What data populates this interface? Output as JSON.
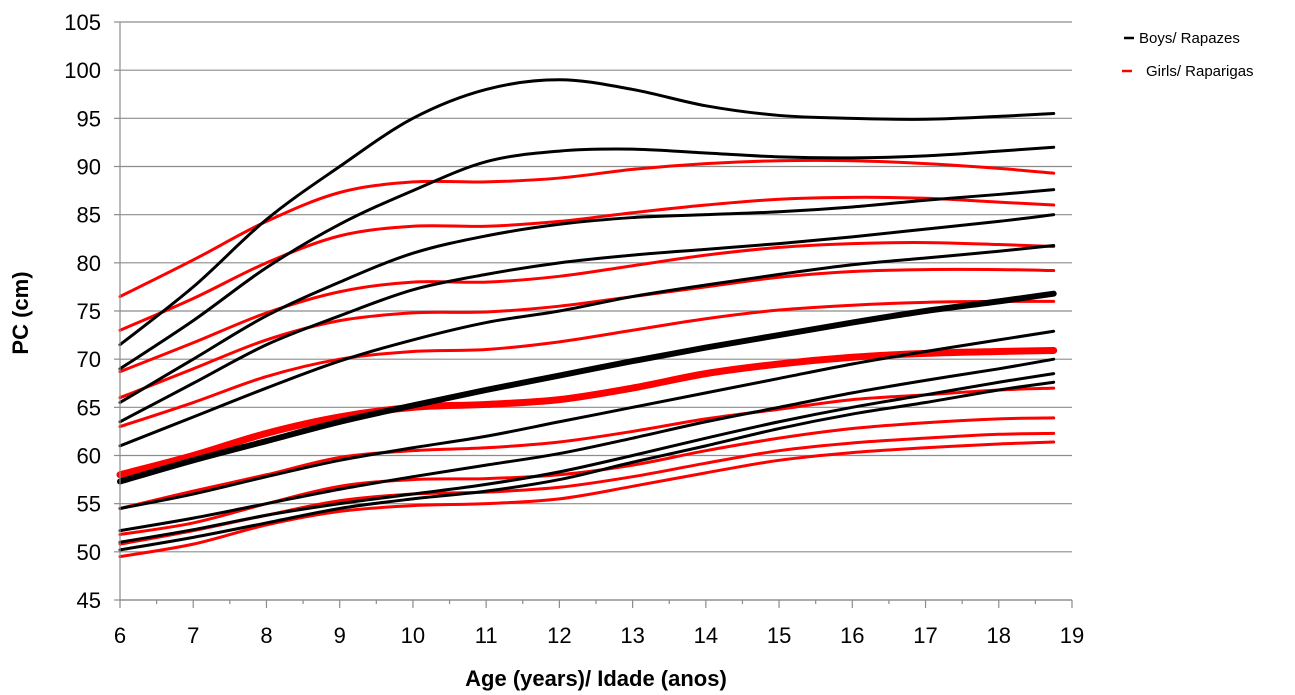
{
  "chart_data": {
    "type": "line",
    "xlabel": "Age (years)/ Idade (anos)",
    "ylabel": "PC (cm)",
    "xlim": [
      6,
      19
    ],
    "ylim": [
      45,
      105
    ],
    "x_ticks": [
      "6",
      "7",
      "8",
      "9",
      "10",
      "11",
      "12",
      "13",
      "14",
      "15",
      "16",
      "17",
      "18",
      "19"
    ],
    "y_ticks": [
      "45",
      "50",
      "55",
      "60",
      "65",
      "70",
      "75",
      "80",
      "85",
      "90",
      "95",
      "100",
      "105"
    ],
    "grid": "horizontal",
    "legend_position": "top-right",
    "legend": [
      {
        "label": "Boys/ Rapazes",
        "color": "#000000"
      },
      {
        "label": "Girls/ Raparigas",
        "color": "#ff0000"
      }
    ],
    "x": [
      6,
      7,
      8,
      9,
      10,
      11,
      12,
      13,
      14,
      15,
      16,
      17,
      18,
      18.75
    ],
    "series": [
      {
        "group": "boys",
        "color": "#000000",
        "width": 3,
        "values": [
          71.5,
          77.5,
          84.5,
          90.0,
          95.0,
          98.0,
          99.0,
          98.0,
          96.3,
          95.3,
          95.0,
          94.9,
          95.2,
          95.5
        ]
      },
      {
        "group": "boys",
        "color": "#000000",
        "width": 3,
        "values": [
          69.0,
          74.0,
          79.5,
          84.0,
          87.5,
          90.5,
          91.6,
          91.8,
          91.4,
          91.0,
          90.9,
          91.1,
          91.6,
          92.0
        ]
      },
      {
        "group": "boys",
        "color": "#000000",
        "width": 3,
        "values": [
          65.5,
          70.0,
          74.5,
          78.0,
          81.0,
          82.8,
          84.0,
          84.7,
          85.0,
          85.3,
          85.8,
          86.5,
          87.1,
          87.6
        ]
      },
      {
        "group": "boys",
        "color": "#000000",
        "width": 3,
        "values": [
          63.5,
          67.5,
          71.5,
          74.5,
          77.2,
          78.8,
          80.0,
          80.8,
          81.4,
          82.0,
          82.7,
          83.5,
          84.3,
          85.0
        ]
      },
      {
        "group": "boys",
        "color": "#000000",
        "width": 3,
        "values": [
          61.0,
          64.0,
          67.0,
          69.8,
          72.0,
          73.8,
          75.0,
          76.5,
          77.7,
          78.8,
          79.8,
          80.5,
          81.2,
          81.8
        ]
      },
      {
        "group": "boys",
        "color": "#000000",
        "width": 6,
        "values": [
          57.3,
          59.5,
          61.5,
          63.5,
          65.2,
          66.8,
          68.3,
          69.8,
          71.2,
          72.5,
          73.8,
          75.0,
          76.0,
          76.8
        ]
      },
      {
        "group": "boys",
        "color": "#000000",
        "width": 3,
        "values": [
          54.5,
          56.0,
          57.8,
          59.5,
          60.8,
          62.0,
          63.5,
          65.0,
          66.5,
          68.0,
          69.5,
          70.8,
          72.0,
          72.9
        ]
      },
      {
        "group": "boys",
        "color": "#000000",
        "width": 3,
        "values": [
          52.2,
          53.5,
          55.0,
          56.5,
          57.8,
          59.0,
          60.2,
          61.8,
          63.5,
          65.0,
          66.5,
          67.8,
          69.0,
          70.0
        ]
      },
      {
        "group": "boys",
        "color": "#000000",
        "width": 3,
        "values": [
          51.0,
          52.3,
          53.8,
          55.0,
          56.0,
          57.0,
          58.3,
          60.0,
          61.8,
          63.5,
          65.0,
          66.3,
          67.6,
          68.5
        ]
      },
      {
        "group": "boys",
        "color": "#000000",
        "width": 3,
        "values": [
          50.2,
          51.5,
          53.0,
          54.5,
          55.5,
          56.3,
          57.5,
          59.3,
          61.0,
          62.8,
          64.3,
          65.5,
          66.8,
          67.6
        ]
      },
      {
        "group": "girls",
        "color": "#ff0000",
        "width": 3,
        "values": [
          76.5,
          80.3,
          84.3,
          87.3,
          88.4,
          88.4,
          88.8,
          89.7,
          90.3,
          90.6,
          90.6,
          90.3,
          89.8,
          89.3
        ]
      },
      {
        "group": "girls",
        "color": "#ff0000",
        "width": 3,
        "values": [
          73.0,
          76.3,
          80.0,
          82.8,
          83.8,
          83.8,
          84.3,
          85.2,
          86.0,
          86.6,
          86.8,
          86.7,
          86.3,
          86.0
        ]
      },
      {
        "group": "girls",
        "color": "#ff0000",
        "width": 3,
        "values": [
          68.7,
          71.7,
          74.8,
          77.0,
          78.0,
          78.0,
          78.6,
          79.7,
          80.8,
          81.6,
          82.0,
          82.1,
          81.9,
          81.7
        ]
      },
      {
        "group": "girls",
        "color": "#ff0000",
        "width": 3,
        "values": [
          66.0,
          69.0,
          72.0,
          74.0,
          74.8,
          74.9,
          75.5,
          76.5,
          77.5,
          78.5,
          79.1,
          79.3,
          79.3,
          79.2
        ]
      },
      {
        "group": "girls",
        "color": "#ff0000",
        "width": 3,
        "values": [
          63.0,
          65.5,
          68.2,
          70.0,
          70.8,
          71.0,
          71.8,
          73.0,
          74.2,
          75.1,
          75.6,
          75.9,
          76.0,
          76.0
        ]
      },
      {
        "group": "girls",
        "color": "#ff0000",
        "width": 7,
        "values": [
          58.0,
          60.0,
          62.3,
          64.0,
          65.0,
          65.3,
          65.8,
          67.0,
          68.5,
          69.5,
          70.2,
          70.6,
          70.8,
          70.9
        ]
      },
      {
        "group": "girls",
        "color": "#ff0000",
        "width": 3,
        "values": [
          54.5,
          56.3,
          58.0,
          59.8,
          60.5,
          60.8,
          61.4,
          62.5,
          63.8,
          64.8,
          65.8,
          66.3,
          66.8,
          67.0
        ]
      },
      {
        "group": "girls",
        "color": "#ff0000",
        "width": 3,
        "values": [
          51.8,
          53.0,
          55.0,
          56.8,
          57.5,
          57.6,
          58.0,
          59.0,
          60.5,
          61.8,
          62.8,
          63.4,
          63.8,
          63.9
        ]
      },
      {
        "group": "girls",
        "color": "#ff0000",
        "width": 3,
        "values": [
          50.8,
          52.2,
          53.8,
          55.3,
          56.0,
          56.2,
          56.7,
          57.8,
          59.2,
          60.5,
          61.3,
          61.8,
          62.2,
          62.3
        ]
      },
      {
        "group": "girls",
        "color": "#ff0000",
        "width": 3,
        "values": [
          49.5,
          50.8,
          52.8,
          54.2,
          54.8,
          55.0,
          55.5,
          56.8,
          58.2,
          59.5,
          60.3,
          60.8,
          61.2,
          61.4
        ]
      }
    ]
  }
}
